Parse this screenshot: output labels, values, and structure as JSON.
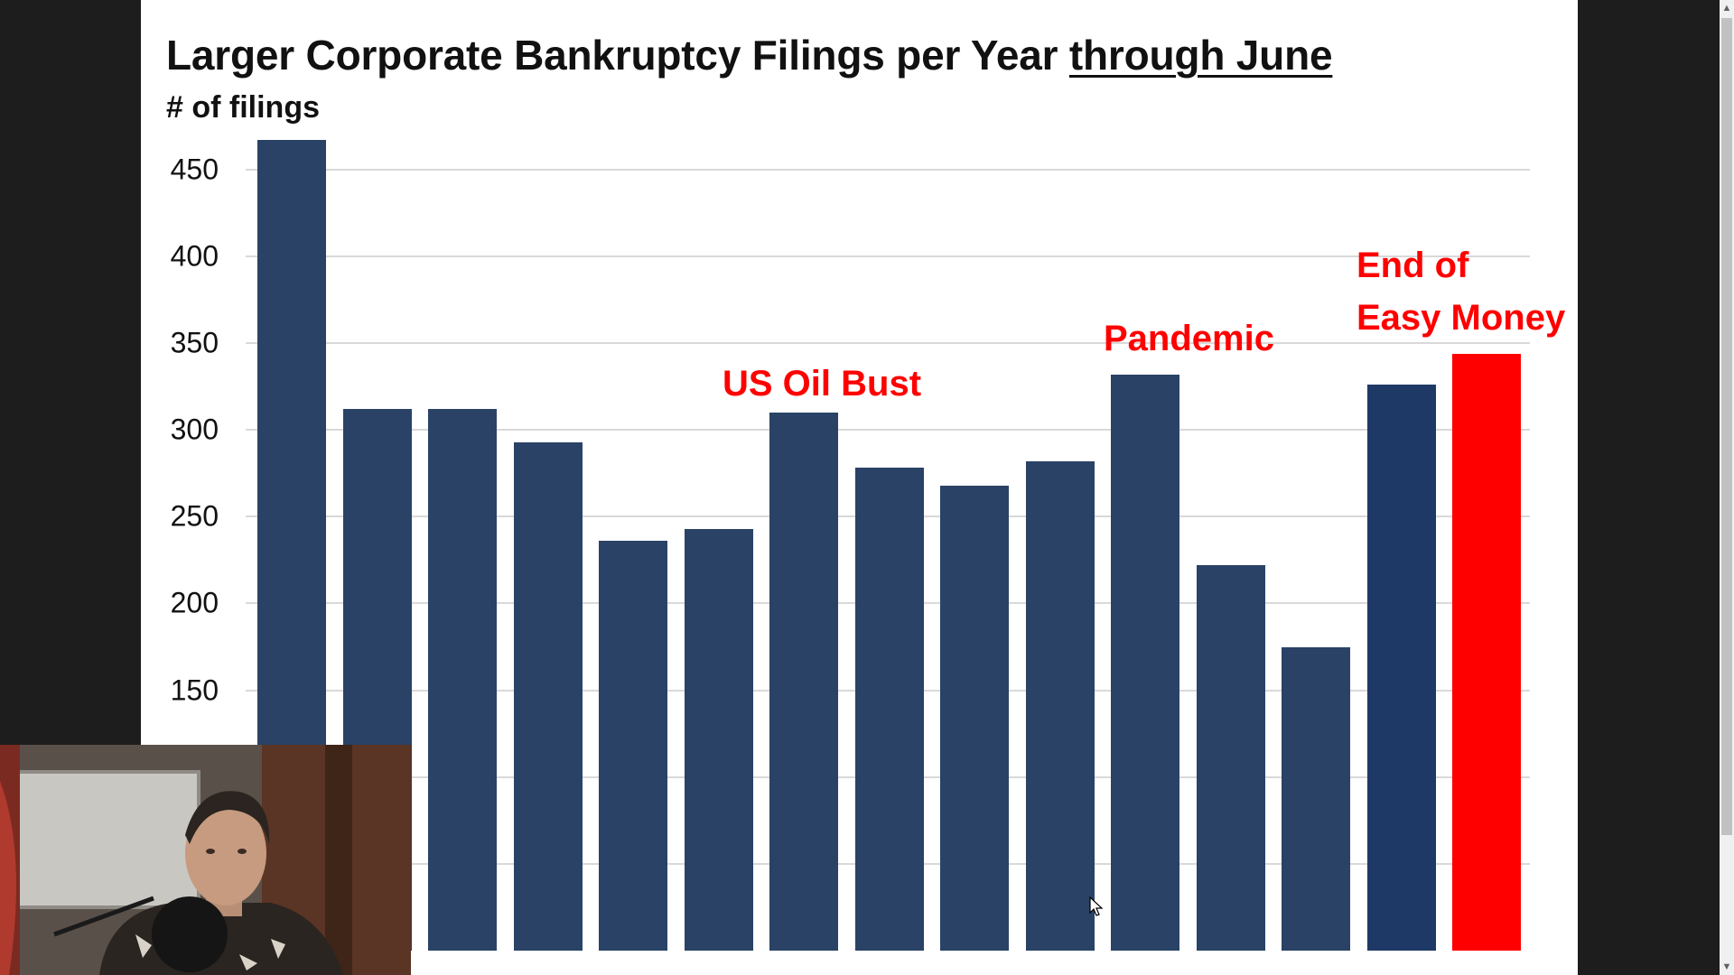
{
  "chart_data": {
    "type": "bar",
    "title_main": "Larger Corporate Bankruptcy Filings per Year ",
    "title_emphasis": "through June",
    "ylabel": "# of filings",
    "ylim": [
      0,
      480
    ],
    "yticks_visible": [
      150,
      200,
      250,
      300,
      350,
      400,
      450
    ],
    "gridlines": true,
    "values": [
      467,
      312,
      312,
      293,
      236,
      243,
      310,
      278,
      268,
      282,
      332,
      222,
      175,
      326,
      344
    ],
    "bar_colors": [
      "#2a4266",
      "#2a4266",
      "#2a4266",
      "#2a4266",
      "#2a4266",
      "#2a4266",
      "#2a4266",
      "#2a4266",
      "#2a4266",
      "#2a4266",
      "#2a4266",
      "#2a4266",
      "#2a4266",
      "#1f3966",
      "#ff0000"
    ],
    "annotations": [
      {
        "text": "US Oil Bust",
        "bar_index": 6
      },
      {
        "text": "Pandemic",
        "bar_index": 10
      },
      {
        "text": "End of\nEasy Money",
        "bar_index": 14
      }
    ]
  },
  "colors": {
    "bar_default": "#2a4266",
    "bar_highlight": "#ff0000",
    "annotation": "#ff0000"
  },
  "overlay": {
    "webcam": "presenter-webcam",
    "icons": [
      "cursor-icon",
      "scroll-up-icon",
      "scroll-down-icon"
    ]
  }
}
